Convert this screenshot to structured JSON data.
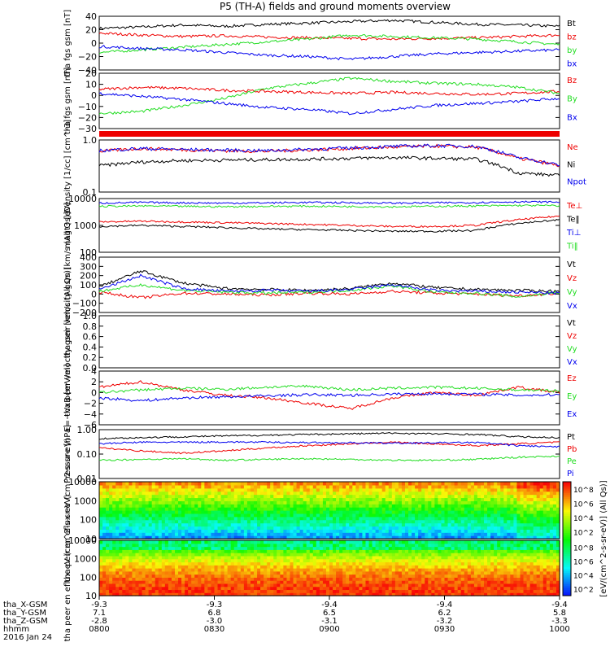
{
  "title": "P5 (TH-A) fields and ground moments overview",
  "colors": {
    "black": "#000000",
    "red": "#ee0000",
    "green": "#22dd22",
    "blue": "#0000ee"
  },
  "time_axis": {
    "ticks": [
      "0800",
      "0830",
      "0900",
      "0930",
      "1000"
    ],
    "rows": [
      {
        "label": "tha_X-GSM",
        "values": [
          "-9.3",
          "-9.3",
          "-9.4",
          "-9.4",
          "-9.4"
        ]
      },
      {
        "label": "tha_Y-GSM",
        "values": [
          "7.1",
          "6.8",
          "6.5",
          "6.2",
          "5.8"
        ]
      },
      {
        "label": "tha_Z-GSM",
        "values": [
          "-2.8",
          "-3.0",
          "-3.1",
          "-3.2",
          "-3.3"
        ]
      },
      {
        "label": "hhmm",
        "values": []
      }
    ],
    "date": "2016 Jan 24"
  },
  "colorbar": {
    "label": "[eV/(cm^2-s-sr-eV)] (All Qs)]",
    "ticks_top": [
      "10^8",
      "10^6",
      "10^4",
      "10^2"
    ],
    "ticks_bottom": [
      "10^8",
      "10^6",
      "10^4",
      "10^2"
    ]
  },
  "chart_data": [
    {
      "type": "line",
      "ylabel": "tha fgs gsm [nT]",
      "ticks": [
        "40",
        "20",
        "0",
        "−20",
        "−40"
      ],
      "ylim": [
        -40,
        40
      ],
      "legend": [
        "Bt",
        "bz",
        "by",
        "bx"
      ],
      "series": [
        {
          "name": "Bt",
          "color": "black",
          "values": [
            22,
            24,
            27,
            25,
            28,
            30,
            32,
            34,
            31,
            28,
            27,
            25
          ]
        },
        {
          "name": "bz",
          "color": "red",
          "values": [
            15,
            12,
            10,
            11,
            9,
            8,
            7,
            6,
            7,
            8,
            10,
            12
          ]
        },
        {
          "name": "by",
          "color": "green",
          "values": [
            -14,
            -10,
            -6,
            -2,
            2,
            6,
            12,
            10,
            8,
            6,
            2,
            -2
          ]
        },
        {
          "name": "bx",
          "color": "blue",
          "values": [
            -5,
            -8,
            -10,
            -14,
            -18,
            -20,
            -24,
            -20,
            -16,
            -14,
            -12,
            -10
          ]
        }
      ]
    },
    {
      "type": "line",
      "ylabel": "tha fgs gsm [nT]",
      "ticks": [
        "20",
        "10",
        "0",
        "−10",
        "−20",
        "−30"
      ],
      "ylim": [
        -35,
        20
      ],
      "legend": [
        "Bz",
        "By",
        "Bx"
      ],
      "series": [
        {
          "name": "Bz",
          "color": "red",
          "values": [
            4,
            6,
            5,
            3,
            2,
            1,
            0,
            1,
            0,
            -1,
            0,
            2
          ]
        },
        {
          "name": "By",
          "color": "green",
          "values": [
            -20,
            -18,
            -12,
            -5,
            5,
            10,
            15,
            12,
            10,
            9,
            6,
            0
          ]
        },
        {
          "name": "Bx",
          "color": "blue",
          "values": [
            0,
            -3,
            -6,
            -10,
            -14,
            -16,
            -20,
            -16,
            -12,
            -10,
            -8,
            -5
          ]
        }
      ]
    },
    {
      "type": "line",
      "ylabel": "Density [1/cc] [cm^-3]",
      "ticks": [
        "1.0",
        "0.1"
      ],
      "log": true,
      "ylim": [
        0.1,
        1.2
      ],
      "legend": [
        "Ne",
        "Ni",
        "Npot"
      ],
      "series": [
        {
          "name": "Ne",
          "color": "red",
          "values": [
            0.7,
            0.8,
            0.75,
            0.72,
            0.7,
            0.75,
            0.8,
            0.85,
            0.9,
            0.85,
            0.5,
            0.35
          ]
        },
        {
          "name": "Ni",
          "color": "black",
          "values": [
            0.35,
            0.42,
            0.45,
            0.46,
            0.47,
            0.48,
            0.5,
            0.52,
            0.5,
            0.48,
            0.25,
            0.22
          ]
        },
        {
          "name": "Npot",
          "color": "blue",
          "values": [
            0.72,
            0.8,
            0.76,
            0.74,
            0.72,
            0.77,
            0.82,
            0.88,
            0.92,
            0.88,
            0.52,
            0.36
          ]
        }
      ]
    },
    {
      "type": "line",
      "ylabel": "magt3 [eV]",
      "ticks": [
        "10000",
        "1000",
        "100"
      ],
      "log": true,
      "ylim": [
        100,
        12000
      ],
      "legend": [
        "Te⊥",
        "Te‖",
        "Ti⊥",
        "Ti‖"
      ],
      "series": [
        {
          "name": "Te⊥",
          "color": "red",
          "values": [
            1500,
            1600,
            1500,
            1400,
            1300,
            1200,
            1100,
            1000,
            1000,
            1100,
            1800,
            2500
          ]
        },
        {
          "name": "Te‖",
          "color": "black",
          "values": [
            1000,
            1100,
            1000,
            900,
            800,
            750,
            700,
            650,
            650,
            700,
            1300,
            1800
          ]
        },
        {
          "name": "Ti⊥",
          "color": "blue",
          "values": [
            8000,
            8500,
            8200,
            8000,
            8200,
            8500,
            8300,
            8000,
            8200,
            8400,
            9000,
            8800
          ]
        },
        {
          "name": "Ti‖",
          "color": "green",
          "values": [
            6000,
            6200,
            6000,
            5800,
            6000,
            6100,
            5900,
            5800,
            6000,
            6200,
            6500,
            6400
          ]
        }
      ]
    },
    {
      "type": "line",
      "ylabel": "tha peir velocity gsm [km/s (All Qs)]",
      "ticks": [
        "400",
        "300",
        "200",
        "100",
        "0",
        "−100",
        "−200"
      ],
      "ylim": [
        -200,
        400
      ],
      "legend": [
        "Vt",
        "Vz",
        "Vy",
        "Vx"
      ],
      "series": [
        {
          "name": "Vt",
          "color": "black",
          "values": [
            80,
            250,
            120,
            60,
            50,
            40,
            60,
            120,
            70,
            50,
            40,
            30
          ]
        },
        {
          "name": "Vz",
          "color": "red",
          "values": [
            20,
            -40,
            10,
            0,
            -10,
            10,
            0,
            30,
            10,
            0,
            -20,
            10
          ]
        },
        {
          "name": "Vy",
          "color": "green",
          "values": [
            30,
            100,
            40,
            20,
            10,
            20,
            40,
            90,
            20,
            10,
            -30,
            20
          ]
        },
        {
          "name": "Vx",
          "color": "blue",
          "values": [
            50,
            200,
            60,
            30,
            40,
            30,
            50,
            100,
            40,
            30,
            20,
            10
          ]
        }
      ]
    },
    {
      "type": "line",
      "ylabel": "tha peer velocity gsm [km/s (All Qs)]",
      "ticks": [
        "1.0",
        "0.8",
        "0.6",
        "0.4",
        "0.2",
        "0.0"
      ],
      "ylim": [
        0,
        1
      ],
      "legend": [
        "Vt",
        "Vz",
        "Vy",
        "Vx"
      ],
      "series": []
    },
    {
      "type": "line",
      "ylabel": "E=−VxB [mV/m]",
      "ticks": [
        "4",
        "2",
        "0",
        "−2",
        "−4",
        "−6"
      ],
      "ylim": [
        -6,
        4
      ],
      "legend": [
        "Ez",
        "Ey",
        "Ex"
      ],
      "series": [
        {
          "name": "Ez",
          "color": "red",
          "values": [
            1,
            2,
            0.5,
            -0.5,
            -1,
            -2,
            -3,
            -1,
            0,
            -0.5,
            1,
            0
          ]
        },
        {
          "name": "Ey",
          "color": "green",
          "values": [
            0,
            0.5,
            0.8,
            0.6,
            1,
            1.2,
            0.5,
            0.8,
            1,
            0.8,
            0.5,
            0.3
          ]
        },
        {
          "name": "Ex",
          "color": "blue",
          "values": [
            -1,
            -1.5,
            -1,
            -0.8,
            -0.6,
            -0.4,
            -0.5,
            -0.3,
            -0.2,
            -0.3,
            -0.5,
            -0.4
          ]
        }
      ]
    },
    {
      "type": "line",
      "ylabel": "Pressure [nPa]",
      "ticks": [
        "1.00",
        "0.10",
        "0.01"
      ],
      "log": true,
      "ylim": [
        0.01,
        1.2
      ],
      "legend": [
        "Pt",
        "Pb",
        "Pe",
        "Pi"
      ],
      "series": [
        {
          "name": "Pt",
          "color": "black",
          "values": [
            0.5,
            0.55,
            0.6,
            0.65,
            0.7,
            0.75,
            0.8,
            0.85,
            0.8,
            0.75,
            0.6,
            0.55
          ]
        },
        {
          "name": "Pb",
          "color": "red",
          "values": [
            0.2,
            0.15,
            0.12,
            0.15,
            0.2,
            0.25,
            0.3,
            0.35,
            0.3,
            0.25,
            0.3,
            0.35
          ]
        },
        {
          "name": "Pe",
          "color": "green",
          "values": [
            0.06,
            0.065,
            0.07,
            0.06,
            0.065,
            0.07,
            0.065,
            0.06,
            0.06,
            0.065,
            0.08,
            0.09
          ]
        },
        {
          "name": "Pi",
          "color": "blue",
          "values": [
            0.3,
            0.35,
            0.35,
            0.36,
            0.35,
            0.34,
            0.33,
            0.32,
            0.33,
            0.34,
            0.25,
            0.22
          ]
        }
      ]
    },
    {
      "type": "heatmap",
      "ylabel": "tha peir en eflux eV (cm^2-s-sr-eV)",
      "ticks": [
        "10000",
        "1000",
        "100",
        "10"
      ],
      "log": true
    },
    {
      "type": "heatmap",
      "ylabel": "tha peer en eflux eV (cm^2-s-sr-eV)",
      "ticks": [
        "10000",
        "1000",
        "100",
        "10"
      ],
      "log": true
    }
  ]
}
